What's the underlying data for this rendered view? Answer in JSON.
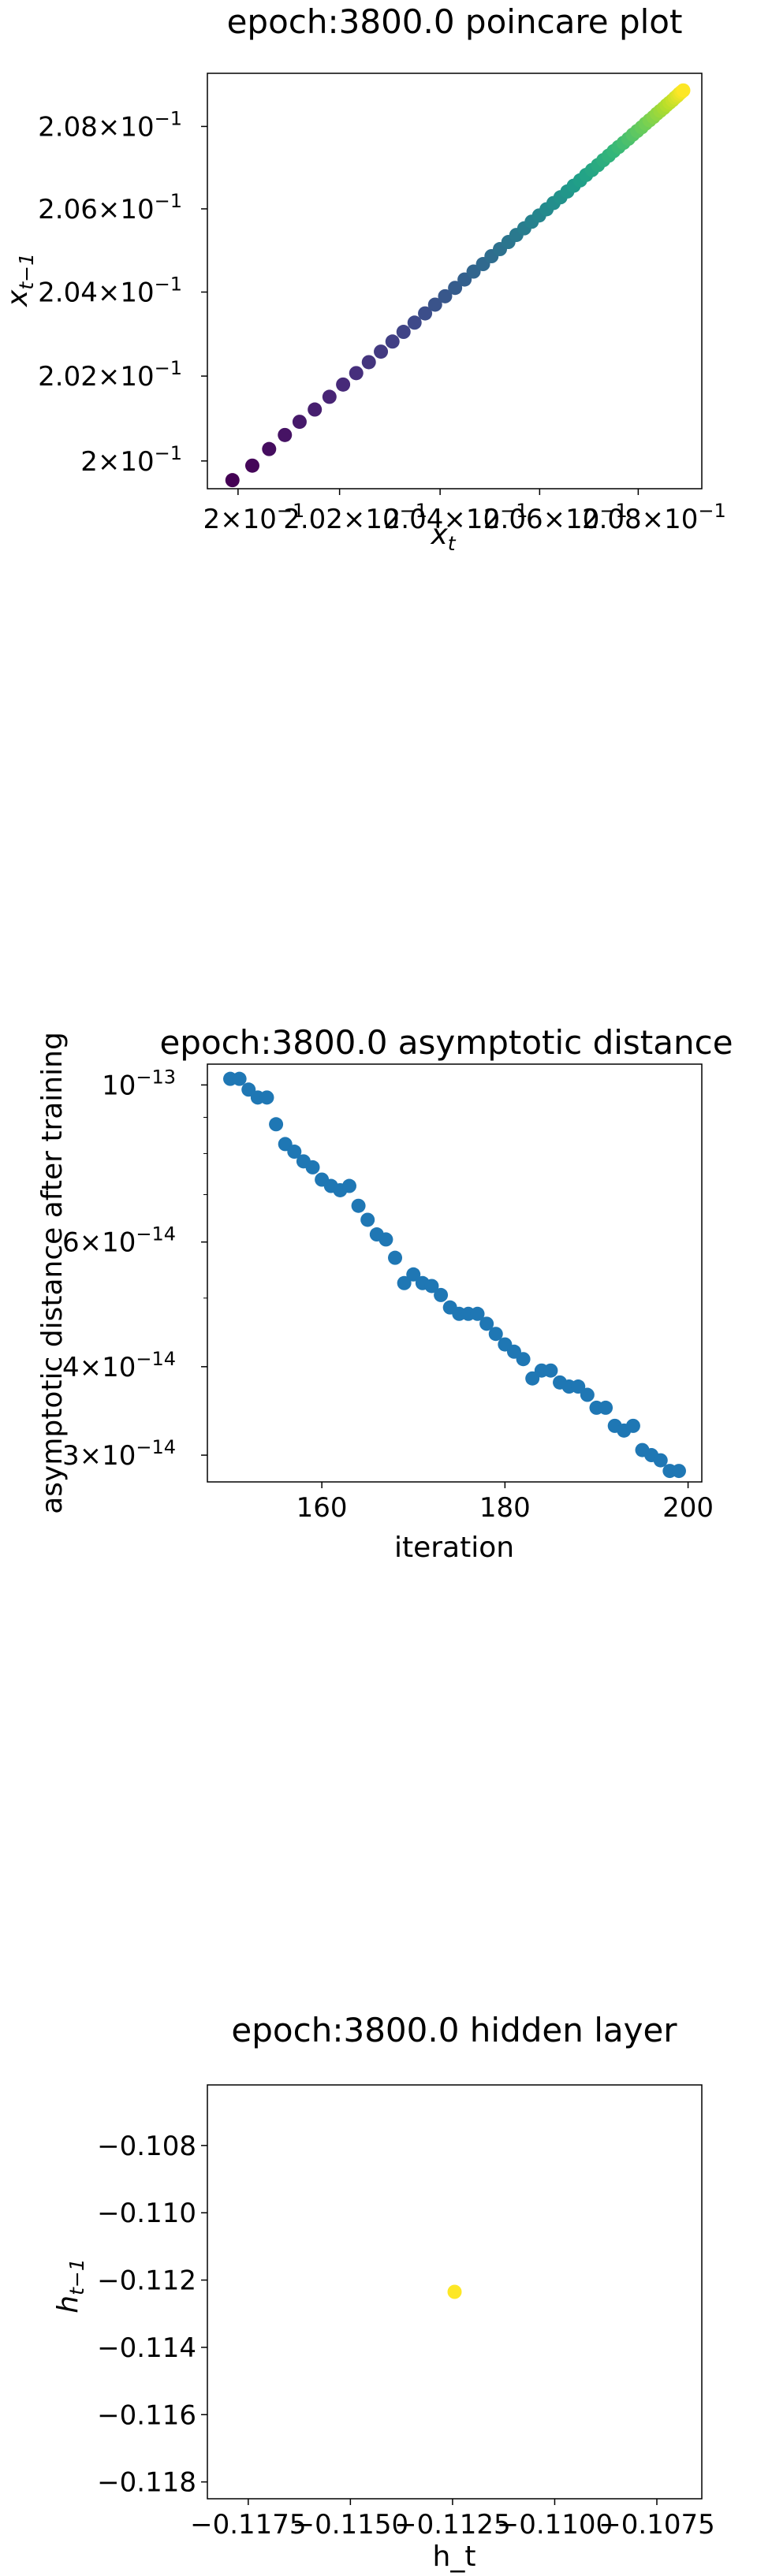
{
  "chart_data": [
    {
      "type": "scatter",
      "title": "epoch:3800.0 poincare plot",
      "xlabel": "x_t",
      "ylabel": "x_{t-1}",
      "xscale": "log",
      "yscale": "log",
      "xlim": [
        0.1994,
        0.2093
      ],
      "ylim": [
        0.19935,
        0.2093
      ],
      "x_tick_values": [
        0.2,
        0.202,
        0.204,
        0.206,
        0.208
      ],
      "x_tick_labels": [
        {
          "mant": "2×10",
          "exp": "−1"
        },
        {
          "mant": "2.02×10",
          "exp": "−1"
        },
        {
          "mant": "2.04×10",
          "exp": "−1"
        },
        {
          "mant": "2.06×10",
          "exp": "−1"
        },
        {
          "mant": "2.08×10",
          "exp": "−1"
        }
      ],
      "y_tick_values": [
        0.2,
        0.202,
        0.204,
        0.206,
        0.208
      ],
      "y_tick_labels": [
        {
          "mant": "2×10",
          "exp": "−1"
        },
        {
          "mant": "2.02×10",
          "exp": "−1"
        },
        {
          "mant": "2.04×10",
          "exp": "−1"
        },
        {
          "mant": "2.06×10",
          "exp": "−1"
        },
        {
          "mant": "2.08×10",
          "exp": "−1"
        }
      ],
      "color_map": "viridis",
      "x": [
        0.19989,
        0.20028,
        0.20061,
        0.20092,
        0.20121,
        0.20151,
        0.2018,
        0.20207,
        0.20233,
        0.20258,
        0.20282,
        0.20305,
        0.20327,
        0.20349,
        0.2037,
        0.2039,
        0.2041,
        0.2043,
        0.20449,
        0.20467,
        0.20486,
        0.20503,
        0.2052,
        0.20537,
        0.20553,
        0.20569,
        0.20584,
        0.20599,
        0.20614,
        0.20628,
        0.20642,
        0.20656,
        0.20669,
        0.20682,
        0.20694,
        0.20706,
        0.20718,
        0.20729,
        0.2074,
        0.2075,
        0.2076,
        0.2077,
        0.2078,
        0.20789,
        0.20798,
        0.20807,
        0.20815,
        0.20823,
        0.20831,
        0.20838,
        0.20845,
        0.20852,
        0.20858,
        0.20864,
        0.2087,
        0.20875,
        0.2088,
        0.20884,
        0.20888,
        0.20892
      ],
      "y": [
        0.19955,
        0.19989,
        0.20028,
        0.20061,
        0.20092,
        0.20121,
        0.20151,
        0.2018,
        0.20207,
        0.20233,
        0.20258,
        0.20282,
        0.20305,
        0.20327,
        0.20349,
        0.2037,
        0.2039,
        0.2041,
        0.2043,
        0.20449,
        0.20467,
        0.20486,
        0.20503,
        0.2052,
        0.20537,
        0.20553,
        0.20569,
        0.20584,
        0.20599,
        0.20614,
        0.20628,
        0.20642,
        0.20656,
        0.20669,
        0.20682,
        0.20694,
        0.20706,
        0.20718,
        0.20729,
        0.2074,
        0.2075,
        0.2076,
        0.2077,
        0.2078,
        0.20789,
        0.20798,
        0.20807,
        0.20815,
        0.20823,
        0.20831,
        0.20838,
        0.20845,
        0.20852,
        0.20858,
        0.20864,
        0.2087,
        0.20875,
        0.2088,
        0.20884,
        0.20888
      ]
    },
    {
      "type": "scatter",
      "title": "epoch:3800.0 asymptotic distance",
      "xlabel": "iteration",
      "ylabel": "asymptotic distance after training",
      "yscale": "log",
      "xlim": [
        147.5,
        201.5
      ],
      "ylim": [
        2.75e-14,
        1.07e-13
      ],
      "x_tick_values": [
        160,
        180,
        200
      ],
      "x_tick_labels": [
        "160",
        "180",
        "200"
      ],
      "y_tick_values": [
        1e-13,
        6e-14,
        4e-14,
        3e-14
      ],
      "y_tick_labels": [
        {
          "mant": "10",
          "exp": "−13"
        },
        {
          "mant": "6×10",
          "exp": "−14"
        },
        {
          "mant": "4×10",
          "exp": "−14"
        },
        {
          "mant": "3×10",
          "exp": "−14"
        }
      ],
      "y_minor_tick_values": [
        9e-14,
        8e-14,
        7e-14,
        5e-14
      ],
      "color": "#1f77b4",
      "x": [
        150,
        151,
        152,
        153,
        154,
        155,
        156,
        157,
        158,
        159,
        160,
        161,
        162,
        163,
        164,
        165,
        166,
        167,
        168,
        169,
        170,
        171,
        172,
        173,
        174,
        175,
        176,
        177,
        178,
        179,
        180,
        181,
        182,
        183,
        184,
        185,
        186,
        187,
        188,
        189,
        190,
        191,
        192,
        193,
        194,
        195,
        196,
        197,
        198,
        199
      ],
      "y": [
        1.02e-13,
        1.02e-13,
        9.85e-14,
        9.6e-14,
        9.6e-14,
        8.8e-14,
        8.25e-14,
        8.05e-14,
        7.8e-14,
        7.65e-14,
        7.35e-14,
        7.2e-14,
        7.1e-14,
        7.2e-14,
        6.75e-14,
        6.45e-14,
        6.15e-14,
        6.05e-14,
        5.7e-14,
        5.25e-14,
        5.4e-14,
        5.25e-14,
        5.2e-14,
        5.05e-14,
        4.85e-14,
        4.75e-14,
        4.75e-14,
        4.75e-14,
        4.6e-14,
        4.45e-14,
        4.3e-14,
        4.2e-14,
        4.1e-14,
        3.85e-14,
        3.95e-14,
        3.95e-14,
        3.8e-14,
        3.75e-14,
        3.75e-14,
        3.65e-14,
        3.5e-14,
        3.5e-14,
        3.3e-14,
        3.25e-14,
        3.3e-14,
        3.05e-14,
        3e-14,
        2.95e-14,
        2.85e-14,
        2.85e-14
      ]
    },
    {
      "type": "scatter",
      "title": "epoch:3800.0 hidden layer",
      "xlabel": "h_t",
      "ylabel": "h_{t-1}",
      "xlim": [
        -0.1185,
        -0.1064
      ],
      "ylim": [
        -0.1185,
        -0.1062
      ],
      "x_tick_values": [
        -0.1175,
        -0.115,
        -0.1125,
        -0.11,
        -0.1075
      ],
      "x_tick_labels": [
        "−0.1175",
        "−0.1150",
        "−0.1125",
        "−0.1100",
        "−0.1075"
      ],
      "y_tick_values": [
        -0.108,
        -0.11,
        -0.112,
        -0.114,
        -0.116,
        -0.118
      ],
      "y_tick_labels": [
        "−0.108",
        "−0.110",
        "−0.112",
        "−0.114",
        "−0.116",
        "−0.118"
      ],
      "color": "#fde725",
      "x": [
        -0.11245
      ],
      "y": [
        -0.11235
      ]
    }
  ]
}
